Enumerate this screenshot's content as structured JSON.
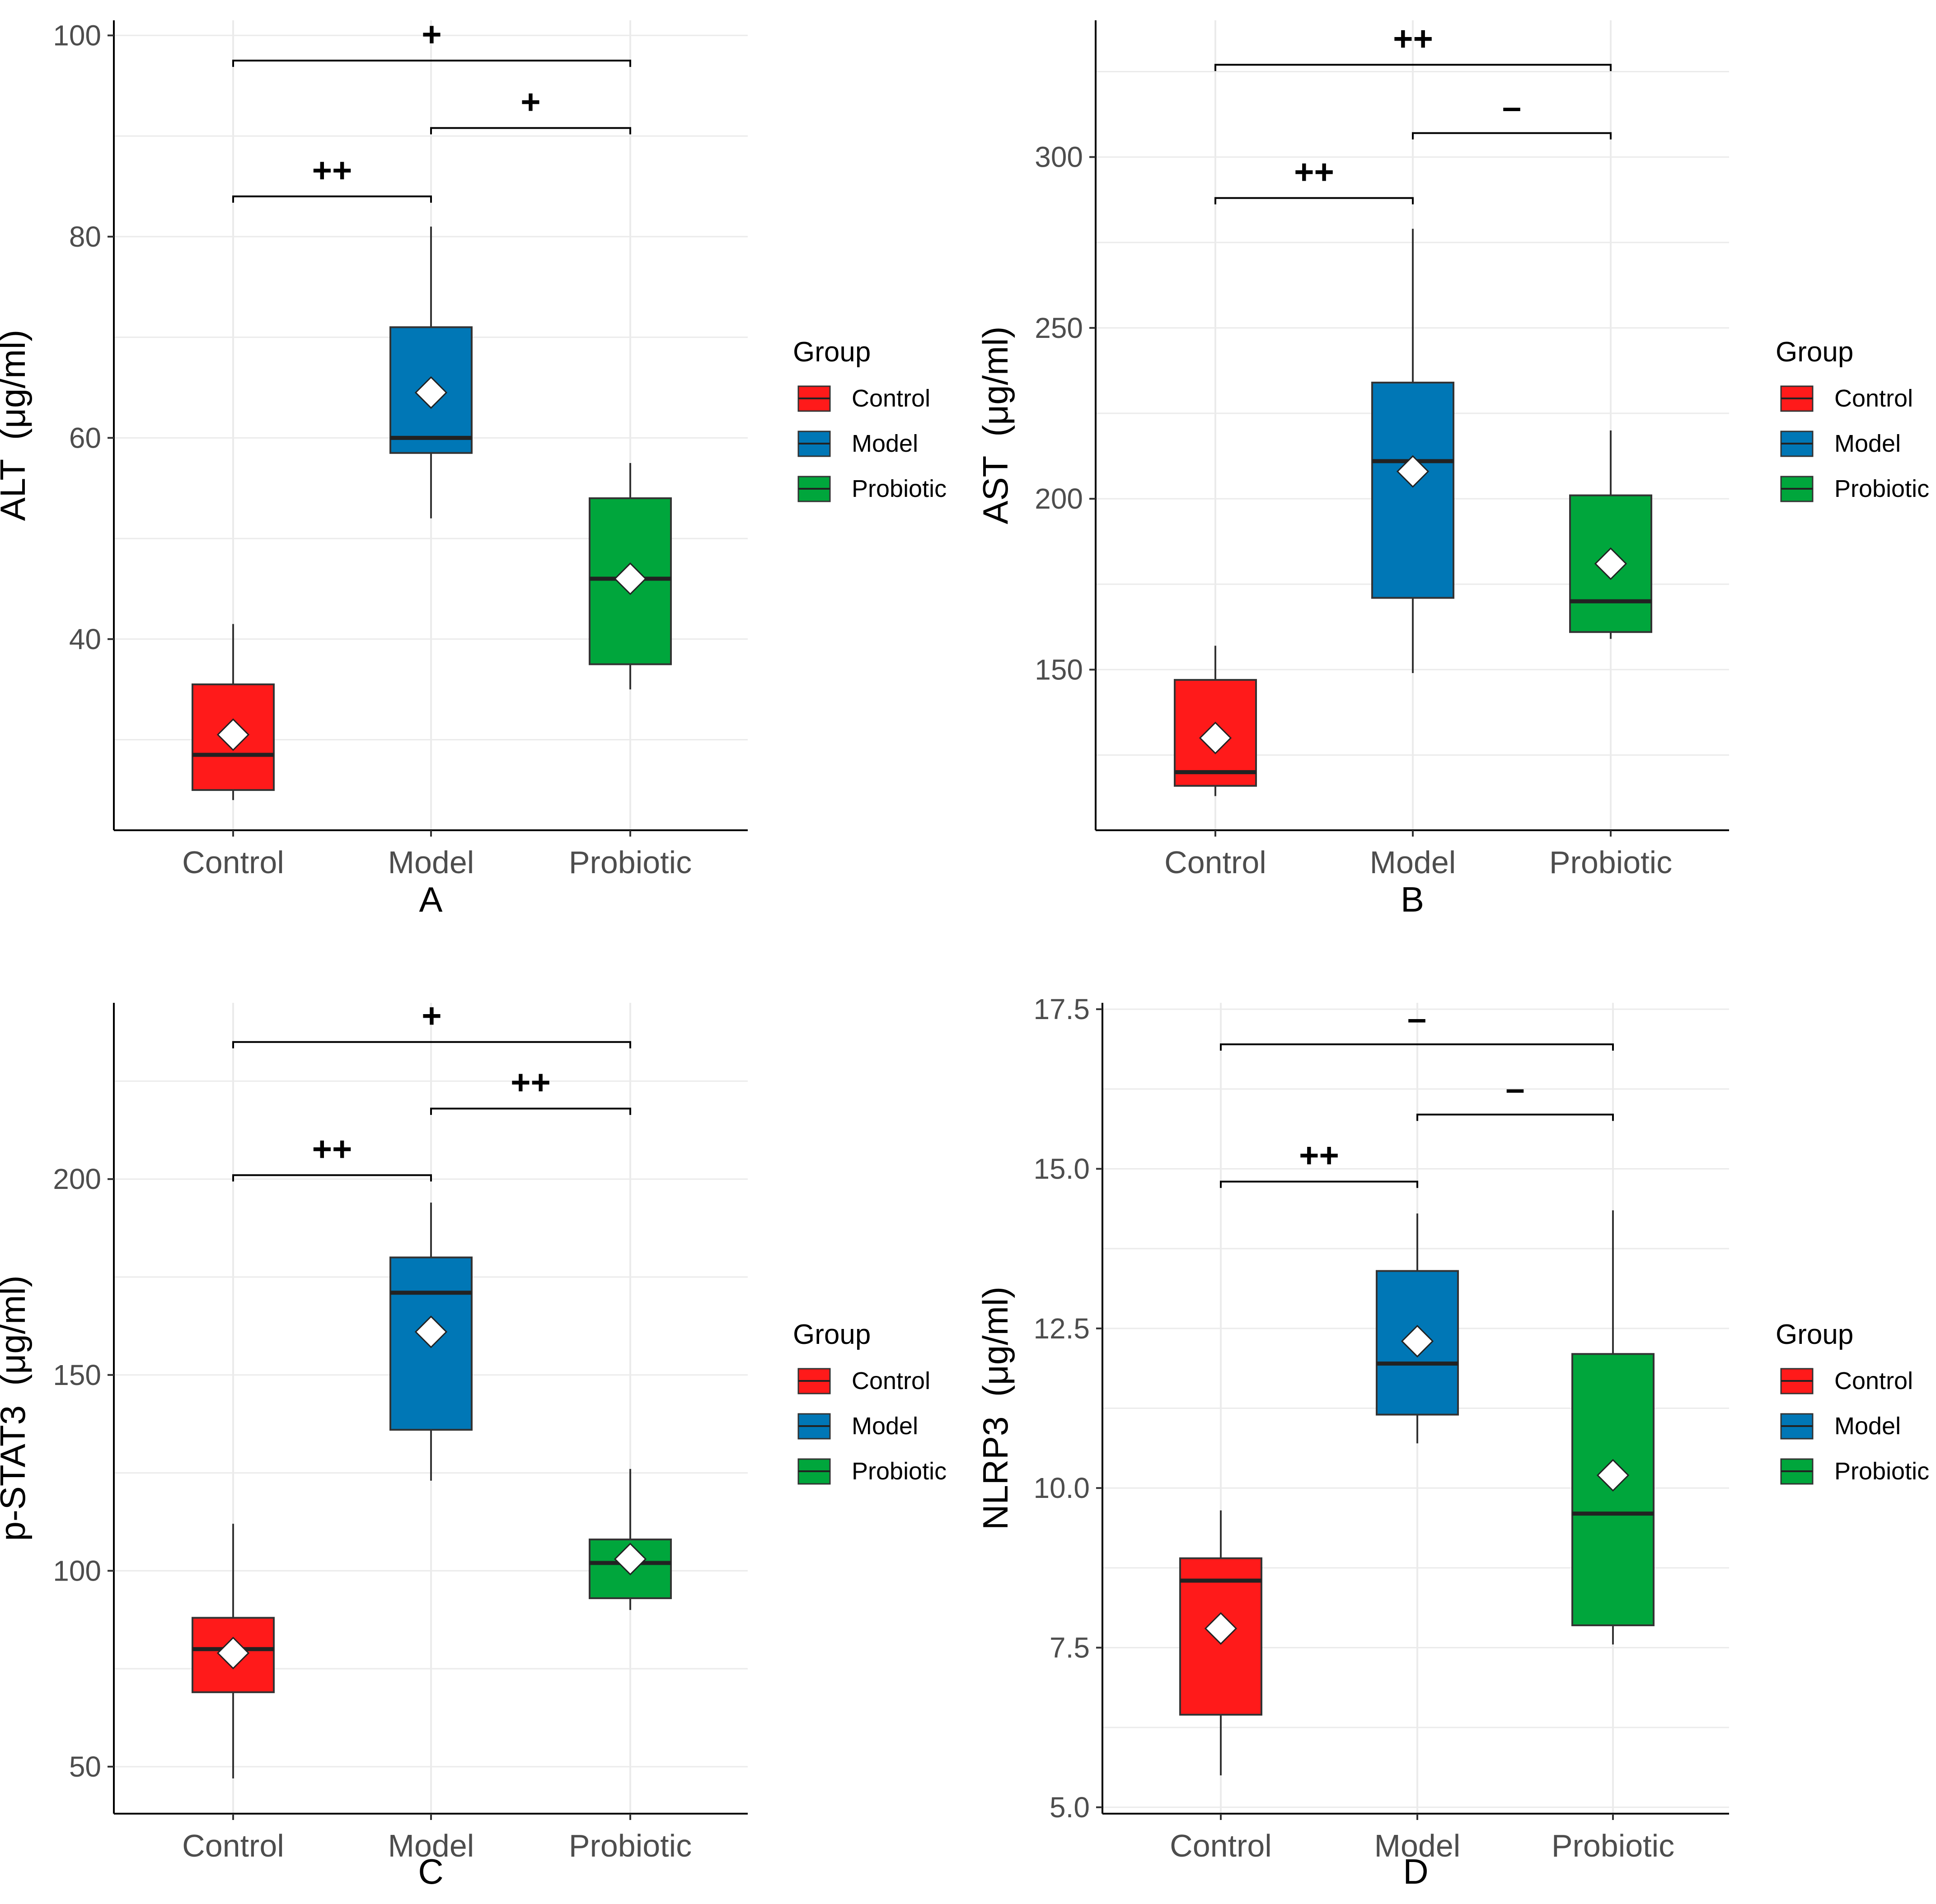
{
  "figure": {
    "legend_title": "Group",
    "groups": [
      "Control",
      "Model",
      "Probiotic"
    ],
    "colors": {
      "Control": "#ff1a1a",
      "Model": "#0077b6",
      "Probiotic": "#00a63c"
    },
    "mean_marker": "white-diamond-icon"
  },
  "chart_data": [
    {
      "type": "box",
      "panel_label": "A",
      "ylabel": "ALT  (μg/ml)",
      "ylim": [
        21,
        101.5
      ],
      "yticks": [
        40,
        60,
        80,
        100
      ],
      "categories": [
        "Control",
        "Model",
        "Probiotic"
      ],
      "boxes": [
        {
          "group": "Control",
          "min": 24,
          "q1": 25,
          "median": 28.5,
          "q3": 35.5,
          "max": 41.5,
          "mean": 30.5
        },
        {
          "group": "Model",
          "min": 52,
          "q1": 58.5,
          "median": 60,
          "q3": 71,
          "max": 81,
          "mean": 64.5
        },
        {
          "group": "Probiotic",
          "min": 35,
          "q1": 37.5,
          "median": 46,
          "q3": 54,
          "max": 57.5,
          "mean": 46
        }
      ],
      "comparisons": [
        {
          "from": "Control",
          "to": "Probiotic",
          "y": 97.5,
          "label": "+"
        },
        {
          "from": "Model",
          "to": "Probiotic",
          "y": 90.8,
          "label": "+"
        },
        {
          "from": "Control",
          "to": "Model",
          "y": 84,
          "label": "++"
        }
      ]
    },
    {
      "type": "box",
      "panel_label": "B",
      "ylabel": "AST  (μg/ml)",
      "ylim": [
        103,
        340
      ],
      "yticks": [
        150,
        200,
        250,
        300
      ],
      "categories": [
        "Control",
        "Model",
        "Probiotic"
      ],
      "boxes": [
        {
          "group": "Control",
          "min": 113,
          "q1": 116,
          "median": 120,
          "q3": 147,
          "max": 157,
          "mean": 130
        },
        {
          "group": "Model",
          "min": 149,
          "q1": 171,
          "median": 211,
          "q3": 234,
          "max": 279,
          "mean": 208
        },
        {
          "group": "Probiotic",
          "min": 159,
          "q1": 161,
          "median": 170,
          "q3": 201,
          "max": 220,
          "mean": 181
        }
      ],
      "comparisons": [
        {
          "from": "Control",
          "to": "Probiotic",
          "y": 327,
          "label": "++"
        },
        {
          "from": "Model",
          "to": "Probiotic",
          "y": 307,
          "label": "–"
        },
        {
          "from": "Control",
          "to": "Model",
          "y": 288,
          "label": "++"
        }
      ]
    },
    {
      "type": "box",
      "panel_label": "C",
      "ylabel": "p-STAT3  (μg/ml)",
      "ylim": [
        38,
        245
      ],
      "yticks": [
        50,
        100,
        150,
        200
      ],
      "categories": [
        "Control",
        "Model",
        "Probiotic"
      ],
      "boxes": [
        {
          "group": "Control",
          "min": 47,
          "q1": 69,
          "median": 80,
          "q3": 88,
          "max": 112,
          "mean": 79
        },
        {
          "group": "Model",
          "min": 123,
          "q1": 136,
          "median": 171,
          "q3": 180,
          "max": 194,
          "mean": 161
        },
        {
          "group": "Probiotic",
          "min": 90,
          "q1": 93,
          "median": 102,
          "q3": 108,
          "max": 126,
          "mean": 103
        }
      ],
      "comparisons": [
        {
          "from": "Control",
          "to": "Probiotic",
          "y": 235,
          "label": "+"
        },
        {
          "from": "Model",
          "to": "Probiotic",
          "y": 218,
          "label": "++"
        },
        {
          "from": "Control",
          "to": "Model",
          "y": 201,
          "label": "++"
        }
      ]
    },
    {
      "type": "box",
      "panel_label": "D",
      "ylabel": "NLRP3  (μg/ml)",
      "ylim": [
        4.9,
        17.6
      ],
      "yticks": [
        5.0,
        7.5,
        10.0,
        12.5,
        15.0,
        17.5
      ],
      "ytick_labels": [
        "5.0",
        "7.5",
        "10.0",
        "12.5",
        "15.0",
        "17.5"
      ],
      "categories": [
        "Control",
        "Model",
        "Probiotic"
      ],
      "boxes": [
        {
          "group": "Control",
          "min": 5.5,
          "q1": 6.45,
          "median": 8.55,
          "q3": 8.9,
          "max": 9.65,
          "mean": 7.8
        },
        {
          "group": "Model",
          "min": 10.7,
          "q1": 11.15,
          "median": 11.95,
          "q3": 13.4,
          "max": 14.3,
          "mean": 12.3
        },
        {
          "group": "Probiotic",
          "min": 7.55,
          "q1": 7.85,
          "median": 9.6,
          "q3": 12.1,
          "max": 14.35,
          "mean": 10.2
        }
      ],
      "comparisons": [
        {
          "from": "Control",
          "to": "Probiotic",
          "y": 16.95,
          "label": "–"
        },
        {
          "from": "Model",
          "to": "Probiotic",
          "y": 15.85,
          "label": "–"
        },
        {
          "from": "Control",
          "to": "Model",
          "y": 14.8,
          "label": "++"
        }
      ]
    }
  ]
}
